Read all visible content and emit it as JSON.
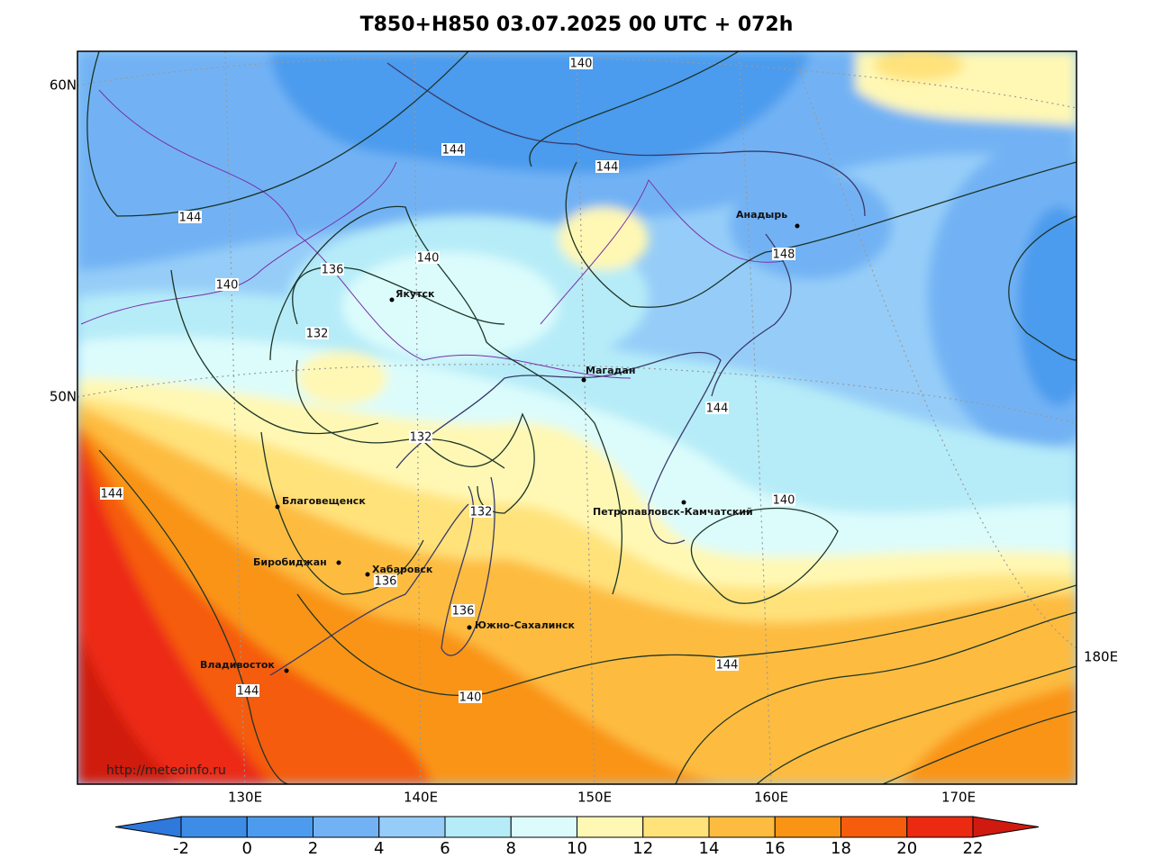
{
  "title": "T850+H850 03.07.2025 00 UTC + 072h",
  "lat_labels": [
    "60N",
    "50N"
  ],
  "lon_labels": [
    "130E",
    "140E",
    "150E",
    "160E",
    "170E",
    "180E"
  ],
  "cities": [
    "Якутск",
    "Магадан",
    "Анадырь",
    "Благовещенск",
    "Биробиджан",
    "Хабаровск",
    "Южно-Сахалинск",
    "Петропавловск-Камчатский",
    "Владивосток"
  ],
  "contour_labels": [
    140,
    144,
    144,
    144,
    140,
    136,
    140,
    132,
    148,
    144,
    132,
    132,
    140,
    144,
    136,
    136,
    144,
    144,
    140
  ],
  "credit": "http://meteoinfo.ru",
  "colorbar": {
    "ticks": [
      -2,
      0,
      2,
      4,
      6,
      8,
      10,
      12,
      14,
      16,
      18,
      20,
      22
    ],
    "colors": [
      "#3d8de6",
      "#4c9bee",
      "#72b2f4",
      "#96cdf8",
      "#b6ecf8",
      "#dcfcfc",
      "#fff8b4",
      "#ffe27a",
      "#fdbc40",
      "#f99414",
      "#f55c0c",
      "#ec2a12"
    ],
    "under_color": "#2f78dc",
    "over_color": "#d01a10"
  }
}
